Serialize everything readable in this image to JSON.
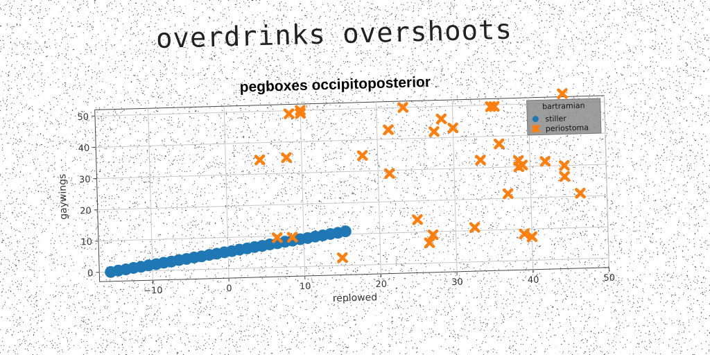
{
  "headline": "overdrinks overshoots",
  "chart_data": {
    "type": "scatter",
    "title": "pegboxes occipitoposterior",
    "xlabel": "replowed",
    "ylabel": "gaywings",
    "xlim": [
      -17,
      50
    ],
    "ylim": [
      -3,
      52
    ],
    "xticks": [
      -10,
      0,
      10,
      20,
      30,
      40,
      50
    ],
    "yticks": [
      0,
      10,
      20,
      30,
      40,
      50
    ],
    "grid": true,
    "legend": {
      "title": "bartramian",
      "placement": "top-right"
    },
    "series": [
      {
        "name": "stiller",
        "marker": "circle",
        "color": "#1f77b4",
        "x": [
          -15.5,
          -14.5,
          -13.5,
          -12.5,
          -11.5,
          -10.5,
          -9.5,
          -8.5,
          -7.5,
          -6.5,
          -5.5,
          -4.5,
          -3.5,
          -2.5,
          -1.5,
          -0.5,
          0.5,
          1.5,
          2.5,
          3.5,
          4.5,
          5.5,
          6.5,
          7.5,
          8.5,
          9.5,
          10.5,
          11.5,
          12.5,
          13.5,
          14.5,
          15.5
        ],
        "y": [
          0.0,
          0.4,
          0.7,
          1.1,
          1.4,
          1.8,
          2.1,
          2.5,
          2.8,
          3.2,
          3.5,
          3.9,
          4.2,
          4.6,
          4.9,
          5.3,
          5.6,
          6.0,
          6.3,
          6.7,
          7.0,
          7.4,
          7.7,
          8.1,
          8.4,
          8.8,
          9.1,
          9.5,
          9.8,
          10.2,
          10.5,
          10.9
        ]
      },
      {
        "name": "periostoma",
        "marker": "x",
        "color": "#ff7f0e",
        "x": [
          8.5,
          10,
          10,
          4.5,
          8,
          6.5,
          8.5,
          15,
          18,
          21.5,
          21.5,
          23.5,
          27.5,
          28.5,
          30,
          25,
          26.5,
          27,
          32.5,
          33.5,
          35,
          35.5,
          36,
          37,
          38.5,
          38.5,
          39,
          39,
          40,
          42,
          44.5,
          44.5,
          46.5,
          44.5
        ],
        "y": [
          49,
          49,
          50,
          34.5,
          35,
          9.5,
          9.5,
          2.5,
          35,
          43,
          29,
          50,
          42,
          46,
          43,
          14,
          6.5,
          9,
          11,
          32.5,
          49.5,
          49.5,
          37.5,
          21.5,
          30,
          32,
          8.5,
          30.5,
          7.5,
          31.5,
          30,
          26.5,
          21,
          53
        ]
      }
    ]
  }
}
